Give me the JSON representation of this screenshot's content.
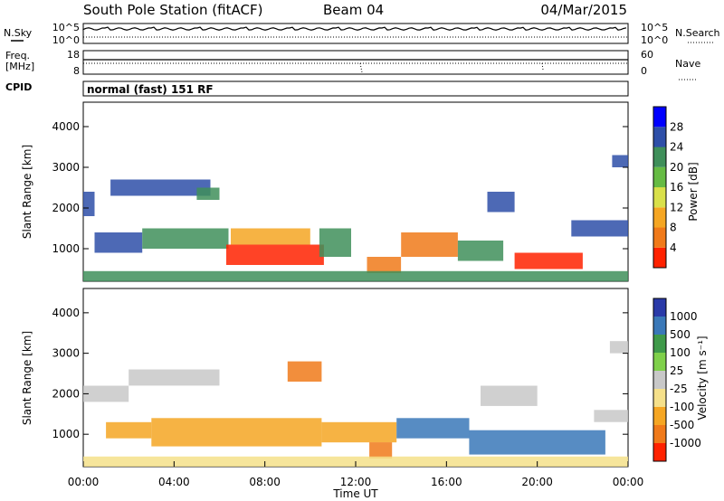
{
  "header": {
    "station": "South Pole Station (fitACF)",
    "beam": "Beam 04",
    "date": "04/Mar/2015"
  },
  "status_panels": {
    "nsky_label": "N.Sky",
    "nsky_ticks": [
      "10^5",
      "10^0"
    ],
    "nsearch_label": "N.Search",
    "nsearch_ticks": [
      "10^5",
      "10^0"
    ],
    "freq_label_1": "Freq.",
    "freq_label_2": "[MHz]",
    "freq_ticks": [
      "18",
      "8"
    ],
    "nave_label": "Nave",
    "nave_ticks": [
      "60",
      "0"
    ],
    "cpid_label": "CPID",
    "cpid_value": "normal (fast) 151 RF"
  },
  "chart_data": [
    {
      "type": "heatmap",
      "name": "power",
      "ylabel": "Slant Range [km]",
      "yticks": [
        "1000",
        "2000",
        "3000",
        "4000"
      ],
      "ylim": [
        200,
        4600
      ],
      "xlim": [
        0,
        24
      ],
      "colorbar_label": "Power [dB]",
      "colorbar_ticks": [
        "4",
        "8",
        "12",
        "16",
        "20",
        "24",
        "28"
      ],
      "colorbar_colors": [
        "#0000ff",
        "#2e4fa8",
        "#3f8f5a",
        "#66bb44",
        "#d9e04a",
        "#f5a623",
        "#f07a1a",
        "#ff2200"
      ],
      "regions": [
        {
          "t0": 1.2,
          "t1": 5.6,
          "r0": 2300,
          "r1": 2700,
          "level": "#2e4fa8"
        },
        {
          "t0": 5.0,
          "t1": 6.0,
          "r0": 2200,
          "r1": 2500,
          "level": "#3f8f5a"
        },
        {
          "t0": 0.0,
          "t1": 0.5,
          "r0": 1800,
          "r1": 2400,
          "level": "#2e4fa8"
        },
        {
          "t0": 0.5,
          "t1": 2.6,
          "r0": 900,
          "r1": 1400,
          "level": "#2e4fa8"
        },
        {
          "t0": 2.6,
          "t1": 6.4,
          "r0": 1000,
          "r1": 1500,
          "level": "#3f8f5a"
        },
        {
          "t0": 6.3,
          "t1": 10.6,
          "r0": 600,
          "r1": 1100,
          "level": "#ff2200"
        },
        {
          "t0": 6.5,
          "t1": 10.0,
          "r0": 1100,
          "r1": 1500,
          "level": "#f5a623"
        },
        {
          "t0": 10.4,
          "t1": 11.8,
          "r0": 800,
          "r1": 1500,
          "level": "#3f8f5a"
        },
        {
          "t0": 12.5,
          "t1": 14.0,
          "r0": 400,
          "r1": 800,
          "level": "#f07a1a"
        },
        {
          "t0": 14.0,
          "t1": 16.5,
          "r0": 800,
          "r1": 1400,
          "level": "#f07a1a"
        },
        {
          "t0": 16.5,
          "t1": 18.5,
          "r0": 700,
          "r1": 1200,
          "level": "#3f8f5a"
        },
        {
          "t0": 19.0,
          "t1": 22.0,
          "r0": 500,
          "r1": 900,
          "level": "#ff2200"
        },
        {
          "t0": 17.8,
          "t1": 19.0,
          "r0": 1900,
          "r1": 2400,
          "level": "#2e4fa8"
        },
        {
          "t0": 21.5,
          "t1": 24.0,
          "r0": 1300,
          "r1": 1700,
          "level": "#2e4fa8"
        },
        {
          "t0": 23.3,
          "t1": 24.0,
          "r0": 3000,
          "r1": 3300,
          "level": "#2e4fa8"
        },
        {
          "t0": 0.0,
          "t1": 24.0,
          "r0": 200,
          "r1": 450,
          "level": "#3f8f5a"
        }
      ]
    },
    {
      "type": "heatmap",
      "name": "velocity",
      "ylabel": "Slant Range [km]",
      "yticks": [
        "1000",
        "2000",
        "3000",
        "4000"
      ],
      "ylim": [
        200,
        4600
      ],
      "xlim": [
        0,
        24
      ],
      "xticks": [
        "00:00",
        "04:00",
        "08:00",
        "12:00",
        "16:00",
        "20:00",
        "00:00"
      ],
      "xlabel": "Time UT",
      "colorbar_label": "Velocity [m s⁻¹]",
      "colorbar_ticks": [
        "1000",
        "500",
        "100",
        "25",
        "-25",
        "-100",
        "-500",
        "-1000"
      ],
      "colorbar_colors": [
        "#2a3aa8",
        "#3a78b8",
        "#3f9a4a",
        "#7fd04a",
        "#c8c8c8",
        "#f5e08a",
        "#f5a623",
        "#f07a1a",
        "#ff2200"
      ],
      "regions": [
        {
          "t0": 2.0,
          "t1": 6.0,
          "r0": 2200,
          "r1": 2600,
          "level": "#c8c8c8"
        },
        {
          "t0": 0.0,
          "t1": 2.0,
          "r0": 1800,
          "r1": 2200,
          "level": "#c8c8c8"
        },
        {
          "t0": 1.0,
          "t1": 3.0,
          "r0": 900,
          "r1": 1300,
          "level": "#f5a623"
        },
        {
          "t0": 3.0,
          "t1": 10.5,
          "r0": 700,
          "r1": 1400,
          "level": "#f5a623"
        },
        {
          "t0": 10.5,
          "t1": 13.8,
          "r0": 800,
          "r1": 1300,
          "level": "#f5a623"
        },
        {
          "t0": 12.6,
          "t1": 13.6,
          "r0": 400,
          "r1": 800,
          "level": "#f07a1a"
        },
        {
          "t0": 13.8,
          "t1": 17.0,
          "r0": 900,
          "r1": 1400,
          "level": "#3a78b8"
        },
        {
          "t0": 17.0,
          "t1": 23.0,
          "r0": 500,
          "r1": 1100,
          "level": "#3a78b8"
        },
        {
          "t0": 17.5,
          "t1": 20.0,
          "r0": 1700,
          "r1": 2200,
          "level": "#c8c8c8"
        },
        {
          "t0": 22.5,
          "t1": 24.0,
          "r0": 1300,
          "r1": 1600,
          "level": "#c8c8c8"
        },
        {
          "t0": 23.2,
          "t1": 24.0,
          "r0": 3000,
          "r1": 3300,
          "level": "#c8c8c8"
        },
        {
          "t0": 9.0,
          "t1": 10.5,
          "r0": 2300,
          "r1": 2800,
          "level": "#f07a1a"
        },
        {
          "t0": 0.0,
          "t1": 24.0,
          "r0": 200,
          "r1": 450,
          "level": "#f5e08a"
        }
      ]
    }
  ]
}
